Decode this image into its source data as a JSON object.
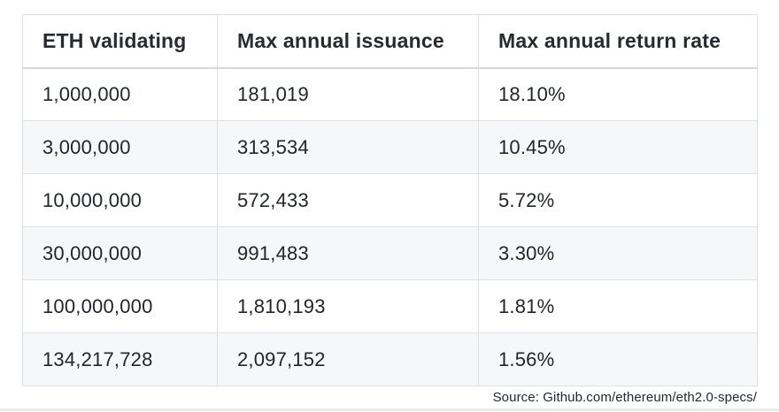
{
  "chart_data": {
    "type": "table",
    "columns": [
      "ETH validating",
      "Max annual issuance",
      "Max annual return rate"
    ],
    "rows": [
      [
        "1,000,000",
        "181,019",
        "18.10%"
      ],
      [
        "3,000,000",
        "313,534",
        "10.45%"
      ],
      [
        "10,000,000",
        "572,433",
        "5.72%"
      ],
      [
        "30,000,000",
        "991,483",
        "3.30%"
      ],
      [
        "100,000,000",
        "1,810,193",
        "1.81%"
      ],
      [
        "134,217,728",
        "2,097,152",
        "1.56%"
      ]
    ],
    "source": "Source: Github.com/ethereum/eth2.0-specs/",
    "layout_hints": {
      "alternating_rows": true,
      "header_background": "#ffffff"
    }
  },
  "colors": {
    "row_alt_background": "#f6f7f9",
    "border": "#dde1e6",
    "text": "#21262c",
    "bottom_bar": "#e8eaed"
  }
}
